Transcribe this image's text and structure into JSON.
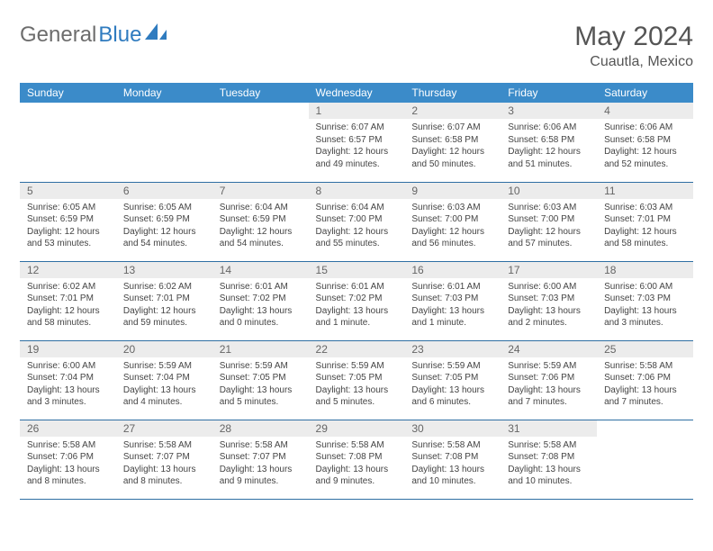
{
  "brand": {
    "part1": "General",
    "part2": "Blue"
  },
  "title": "May 2024",
  "location": "Cuautla, Mexico",
  "colors": {
    "header_bg": "#3b8bc9",
    "header_text": "#ffffff",
    "daynum_bg": "#ececec",
    "rule": "#2f6fa3",
    "brand_gray": "#6d6d6d",
    "brand_blue": "#2f7bbf"
  },
  "weekdays": [
    "Sunday",
    "Monday",
    "Tuesday",
    "Wednesday",
    "Thursday",
    "Friday",
    "Saturday"
  ],
  "weeks": [
    [
      {
        "n": "",
        "lines": []
      },
      {
        "n": "",
        "lines": []
      },
      {
        "n": "",
        "lines": []
      },
      {
        "n": "1",
        "lines": [
          "Sunrise: 6:07 AM",
          "Sunset: 6:57 PM",
          "Daylight: 12 hours",
          "and 49 minutes."
        ]
      },
      {
        "n": "2",
        "lines": [
          "Sunrise: 6:07 AM",
          "Sunset: 6:58 PM",
          "Daylight: 12 hours",
          "and 50 minutes."
        ]
      },
      {
        "n": "3",
        "lines": [
          "Sunrise: 6:06 AM",
          "Sunset: 6:58 PM",
          "Daylight: 12 hours",
          "and 51 minutes."
        ]
      },
      {
        "n": "4",
        "lines": [
          "Sunrise: 6:06 AM",
          "Sunset: 6:58 PM",
          "Daylight: 12 hours",
          "and 52 minutes."
        ]
      }
    ],
    [
      {
        "n": "5",
        "lines": [
          "Sunrise: 6:05 AM",
          "Sunset: 6:59 PM",
          "Daylight: 12 hours",
          "and 53 minutes."
        ]
      },
      {
        "n": "6",
        "lines": [
          "Sunrise: 6:05 AM",
          "Sunset: 6:59 PM",
          "Daylight: 12 hours",
          "and 54 minutes."
        ]
      },
      {
        "n": "7",
        "lines": [
          "Sunrise: 6:04 AM",
          "Sunset: 6:59 PM",
          "Daylight: 12 hours",
          "and 54 minutes."
        ]
      },
      {
        "n": "8",
        "lines": [
          "Sunrise: 6:04 AM",
          "Sunset: 7:00 PM",
          "Daylight: 12 hours",
          "and 55 minutes."
        ]
      },
      {
        "n": "9",
        "lines": [
          "Sunrise: 6:03 AM",
          "Sunset: 7:00 PM",
          "Daylight: 12 hours",
          "and 56 minutes."
        ]
      },
      {
        "n": "10",
        "lines": [
          "Sunrise: 6:03 AM",
          "Sunset: 7:00 PM",
          "Daylight: 12 hours",
          "and 57 minutes."
        ]
      },
      {
        "n": "11",
        "lines": [
          "Sunrise: 6:03 AM",
          "Sunset: 7:01 PM",
          "Daylight: 12 hours",
          "and 58 minutes."
        ]
      }
    ],
    [
      {
        "n": "12",
        "lines": [
          "Sunrise: 6:02 AM",
          "Sunset: 7:01 PM",
          "Daylight: 12 hours",
          "and 58 minutes."
        ]
      },
      {
        "n": "13",
        "lines": [
          "Sunrise: 6:02 AM",
          "Sunset: 7:01 PM",
          "Daylight: 12 hours",
          "and 59 minutes."
        ]
      },
      {
        "n": "14",
        "lines": [
          "Sunrise: 6:01 AM",
          "Sunset: 7:02 PM",
          "Daylight: 13 hours",
          "and 0 minutes."
        ]
      },
      {
        "n": "15",
        "lines": [
          "Sunrise: 6:01 AM",
          "Sunset: 7:02 PM",
          "Daylight: 13 hours",
          "and 1 minute."
        ]
      },
      {
        "n": "16",
        "lines": [
          "Sunrise: 6:01 AM",
          "Sunset: 7:03 PM",
          "Daylight: 13 hours",
          "and 1 minute."
        ]
      },
      {
        "n": "17",
        "lines": [
          "Sunrise: 6:00 AM",
          "Sunset: 7:03 PM",
          "Daylight: 13 hours",
          "and 2 minutes."
        ]
      },
      {
        "n": "18",
        "lines": [
          "Sunrise: 6:00 AM",
          "Sunset: 7:03 PM",
          "Daylight: 13 hours",
          "and 3 minutes."
        ]
      }
    ],
    [
      {
        "n": "19",
        "lines": [
          "Sunrise: 6:00 AM",
          "Sunset: 7:04 PM",
          "Daylight: 13 hours",
          "and 3 minutes."
        ]
      },
      {
        "n": "20",
        "lines": [
          "Sunrise: 5:59 AM",
          "Sunset: 7:04 PM",
          "Daylight: 13 hours",
          "and 4 minutes."
        ]
      },
      {
        "n": "21",
        "lines": [
          "Sunrise: 5:59 AM",
          "Sunset: 7:05 PM",
          "Daylight: 13 hours",
          "and 5 minutes."
        ]
      },
      {
        "n": "22",
        "lines": [
          "Sunrise: 5:59 AM",
          "Sunset: 7:05 PM",
          "Daylight: 13 hours",
          "and 5 minutes."
        ]
      },
      {
        "n": "23",
        "lines": [
          "Sunrise: 5:59 AM",
          "Sunset: 7:05 PM",
          "Daylight: 13 hours",
          "and 6 minutes."
        ]
      },
      {
        "n": "24",
        "lines": [
          "Sunrise: 5:59 AM",
          "Sunset: 7:06 PM",
          "Daylight: 13 hours",
          "and 7 minutes."
        ]
      },
      {
        "n": "25",
        "lines": [
          "Sunrise: 5:58 AM",
          "Sunset: 7:06 PM",
          "Daylight: 13 hours",
          "and 7 minutes."
        ]
      }
    ],
    [
      {
        "n": "26",
        "lines": [
          "Sunrise: 5:58 AM",
          "Sunset: 7:06 PM",
          "Daylight: 13 hours",
          "and 8 minutes."
        ]
      },
      {
        "n": "27",
        "lines": [
          "Sunrise: 5:58 AM",
          "Sunset: 7:07 PM",
          "Daylight: 13 hours",
          "and 8 minutes."
        ]
      },
      {
        "n": "28",
        "lines": [
          "Sunrise: 5:58 AM",
          "Sunset: 7:07 PM",
          "Daylight: 13 hours",
          "and 9 minutes."
        ]
      },
      {
        "n": "29",
        "lines": [
          "Sunrise: 5:58 AM",
          "Sunset: 7:08 PM",
          "Daylight: 13 hours",
          "and 9 minutes."
        ]
      },
      {
        "n": "30",
        "lines": [
          "Sunrise: 5:58 AM",
          "Sunset: 7:08 PM",
          "Daylight: 13 hours",
          "and 10 minutes."
        ]
      },
      {
        "n": "31",
        "lines": [
          "Sunrise: 5:58 AM",
          "Sunset: 7:08 PM",
          "Daylight: 13 hours",
          "and 10 minutes."
        ]
      },
      {
        "n": "",
        "lines": []
      }
    ]
  ]
}
